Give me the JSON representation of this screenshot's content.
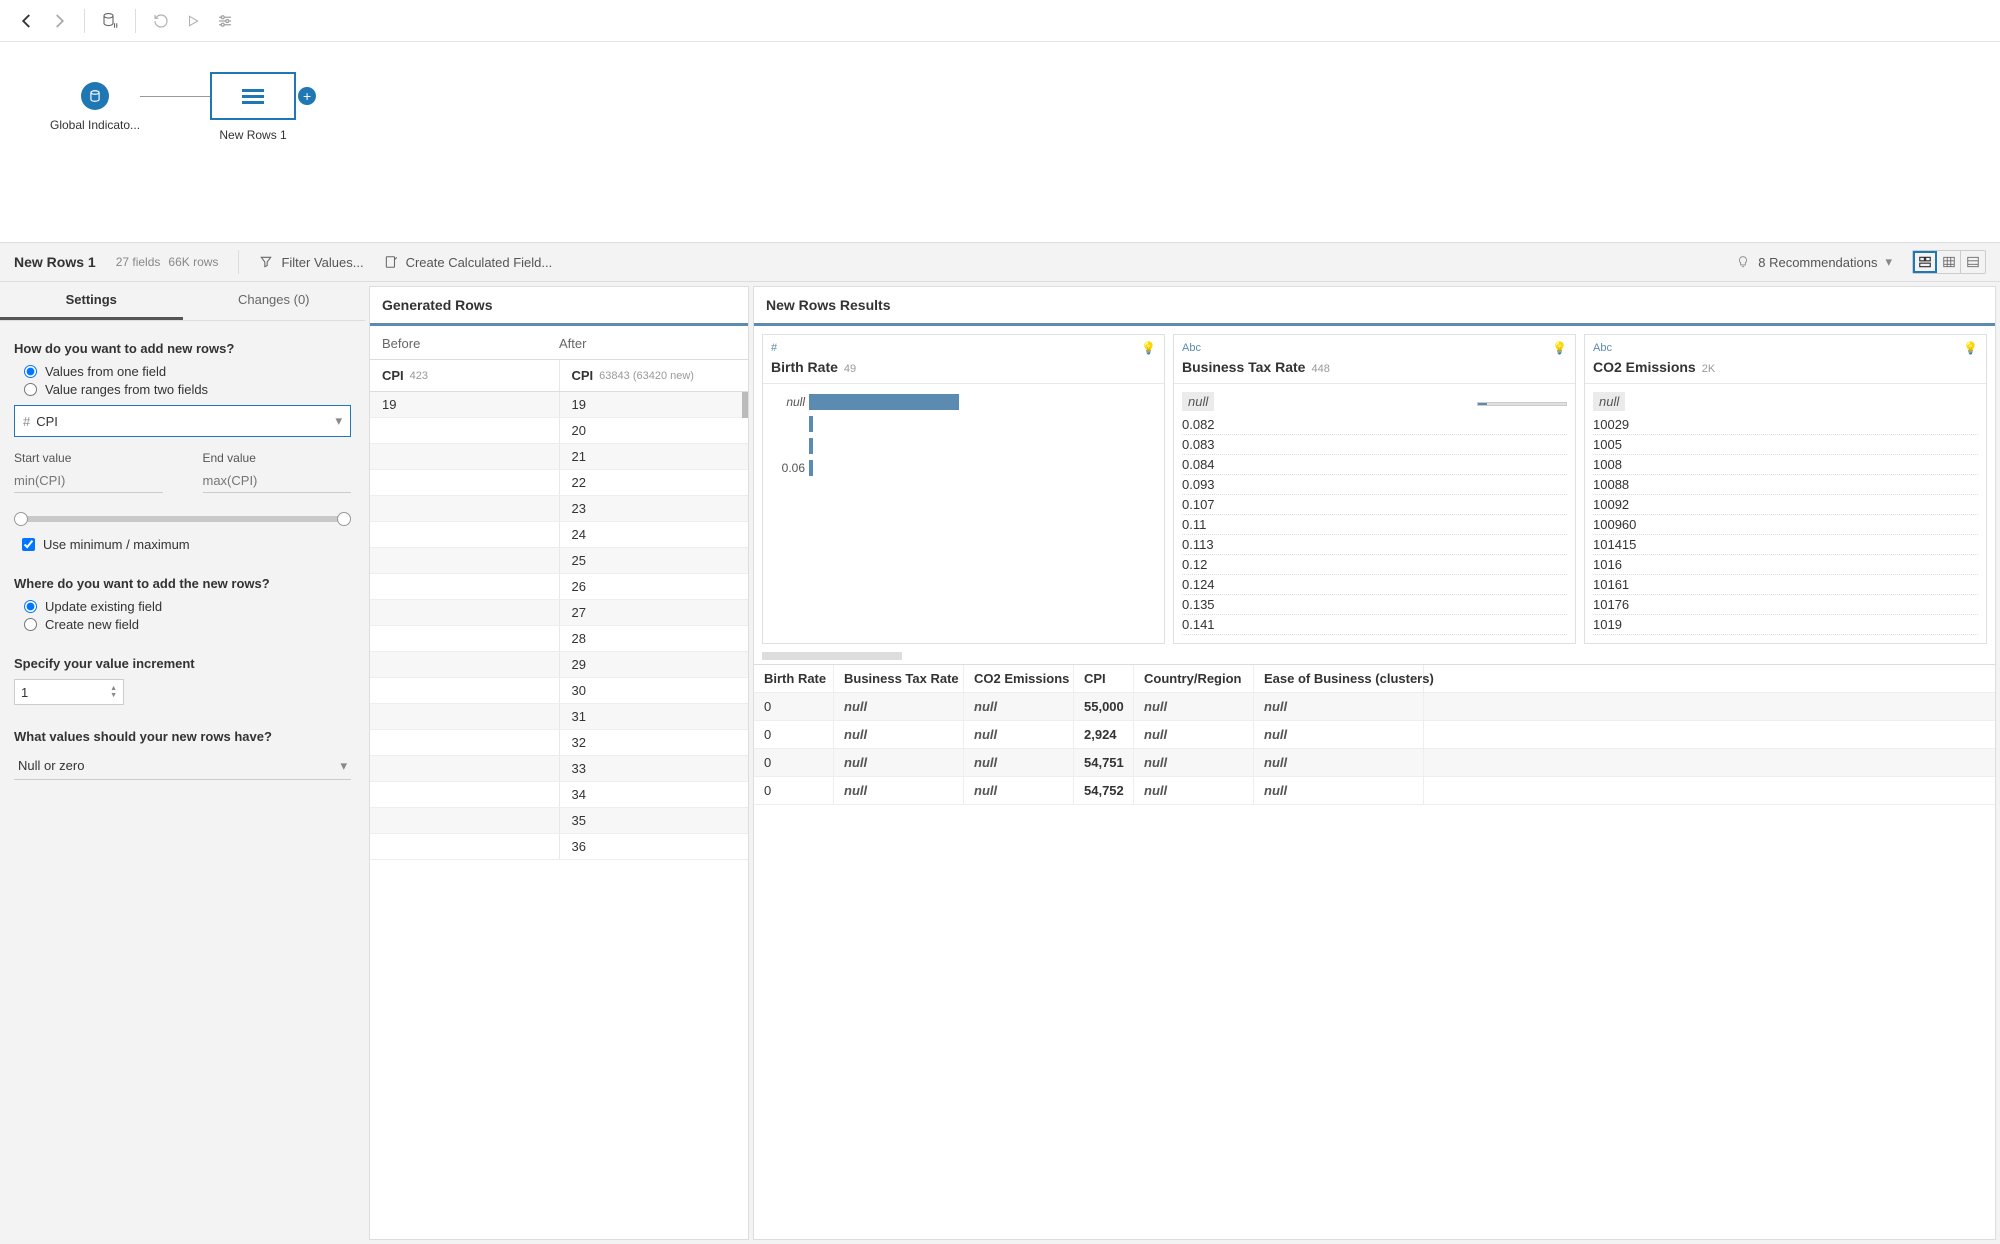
{
  "toolbar": {},
  "flow": {
    "source_label": "Global Indicato...",
    "step_label": "New Rows 1"
  },
  "headerBar": {
    "title": "New Rows 1",
    "fields_count": "27 fields",
    "rows_count": "66K rows",
    "filter_label": "Filter Values...",
    "calc_label": "Create Calculated Field...",
    "recs_label": "8 Recommendations"
  },
  "settings": {
    "tab_settings": "Settings",
    "tab_changes": "Changes (0)",
    "q_how": "How do you want to add new rows?",
    "opt_one_field": "Values from one field",
    "opt_two_fields": "Value ranges from two fields",
    "field_name": "CPI",
    "start_label": "Start value",
    "end_label": "End value",
    "start_placeholder": "min(CPI)",
    "end_placeholder": "max(CPI)",
    "minmax_label": "Use minimum / maximum",
    "q_where": "Where do you want to add the new rows?",
    "opt_update": "Update existing field",
    "opt_create": "Create new field",
    "q_increment": "Specify your value increment",
    "increment_value": "1",
    "q_values": "What values should your new rows have?",
    "null_option": "Null or zero"
  },
  "generated": {
    "title": "Generated Rows",
    "before_label": "Before",
    "after_label": "After",
    "col_label": "CPI",
    "before_count": "423",
    "after_count": "63843 (63420 new)",
    "before_rows": [
      "19"
    ],
    "after_rows": [
      "19",
      "20",
      "21",
      "22",
      "23",
      "24",
      "25",
      "26",
      "27",
      "28",
      "29",
      "30",
      "31",
      "32",
      "33",
      "34",
      "35",
      "36"
    ]
  },
  "results": {
    "title": "New Rows Results",
    "cards": [
      {
        "type_label": "#",
        "name": "Birth Rate",
        "count": "49",
        "kind": "dist",
        "dist": [
          {
            "label": "null",
            "width": 150,
            "color": "#5b8bb0"
          },
          {
            "label": "",
            "width": 4,
            "color": "#5b8bb0"
          },
          {
            "label": "",
            "width": 4,
            "color": "#5b8bb0"
          },
          {
            "label": "0.06",
            "width": 4,
            "color": "#5b8bb0"
          }
        ]
      },
      {
        "type_label": "Abc",
        "name": "Business Tax Rate",
        "count": "448",
        "kind": "list",
        "has_minibar": true,
        "values": [
          "0.082",
          "0.083",
          "0.084",
          "0.093",
          "0.107",
          "0.11",
          "0.113",
          "0.12",
          "0.124",
          "0.135",
          "0.141"
        ]
      },
      {
        "type_label": "Abc",
        "name": "CO2 Emissions",
        "count": "2K",
        "kind": "list",
        "has_minibar": false,
        "values": [
          "10029",
          "1005",
          "1008",
          "10088",
          "10092",
          "100960",
          "101415",
          "1016",
          "10161",
          "10176",
          "1019"
        ]
      }
    ],
    "table": {
      "columns": [
        "Birth Rate",
        "Business Tax Rate",
        "CO2 Emissions",
        "CPI",
        "Country/Region",
        "Ease of Business (clusters)"
      ],
      "rows": [
        [
          "0",
          "null",
          "null",
          "55,000",
          "null",
          "null"
        ],
        [
          "0",
          "null",
          "null",
          "2,924",
          "null",
          "null"
        ],
        [
          "0",
          "null",
          "null",
          "54,751",
          "null",
          "null"
        ],
        [
          "0",
          "null",
          "null",
          "54,752",
          "null",
          "null"
        ]
      ]
    }
  }
}
